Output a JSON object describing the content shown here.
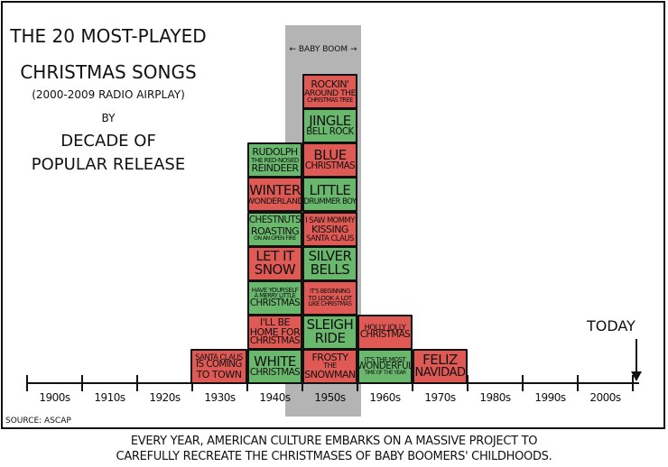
{
  "colors": {
    "red": "#e05a55",
    "green": "#69b86d",
    "band": "#b4b4b4",
    "ink": "#111111"
  },
  "title": {
    "lines": [
      "THE 20 MOST-PLAYED",
      "CHRISTMAS SONGS",
      "(2000-2009 RADIO AIRPLAY)",
      "BY",
      "DECADE OF",
      "POPULAR RELEASE"
    ]
  },
  "band_label": "← BABY BOOM →",
  "today_label": "TODAY",
  "source": "SOURCE: ASCAP",
  "caption": [
    "EVERY YEAR, AMERICAN CULTURE EMBARKS ON A MASSIVE PROJECT TO",
    "CAREFULLY RECREATE THE CHRISTMASES OF BABY BOOMERS' CHILDHOODS."
  ],
  "chart_data": {
    "type": "bar",
    "stacked_blocks": true,
    "categories": [
      "1900s",
      "1910s",
      "1920s",
      "1930s",
      "1940s",
      "1950s",
      "1960s",
      "1970s",
      "1980s",
      "1990s",
      "2000s"
    ],
    "values": [
      0,
      0,
      0,
      1,
      7,
      9,
      2,
      1,
      0,
      0,
      0
    ],
    "highlight": {
      "label": "BABY BOOM",
      "category": "1950s"
    },
    "songs": {
      "1930s": [
        {
          "lines": [
            "SANTA CLAUS",
            "IS COMING",
            "TO TOWN"
          ],
          "color": "red"
        }
      ],
      "1940s": [
        {
          "lines": [
            "WHITE",
            "CHRISTMAS"
          ],
          "color": "green"
        },
        {
          "lines": [
            "I'LL BE",
            "HOME FOR",
            "CHRISTMAS"
          ],
          "color": "red"
        },
        {
          "lines": [
            "HAVE YOURSELF",
            "A MERRY LITTLE",
            "CHRISTMAS"
          ],
          "color": "green"
        },
        {
          "lines": [
            "LET IT",
            "SNOW"
          ],
          "color": "red"
        },
        {
          "lines": [
            "CHESTNUTS",
            "ROASTING",
            "ON AN OPEN FIRE"
          ],
          "color": "green"
        },
        {
          "lines": [
            "WINTER",
            "WONDERLAND"
          ],
          "color": "red"
        },
        {
          "lines": [
            "RUDOLPH",
            "THE RED-NOSED",
            "REINDEER"
          ],
          "color": "green"
        }
      ],
      "1950s": [
        {
          "lines": [
            "FROSTY",
            "THE",
            "SNOWMAN"
          ],
          "color": "red"
        },
        {
          "lines": [
            "SLEIGH",
            "RIDE"
          ],
          "color": "green"
        },
        {
          "lines": [
            "IT'S BEGINNING",
            "TO LOOK A LOT",
            "LIKE CHRISTMAS"
          ],
          "color": "red"
        },
        {
          "lines": [
            "SILVER",
            "BELLS"
          ],
          "color": "green"
        },
        {
          "lines": [
            "I SAW MOMMY",
            "KISSING",
            "SANTA CLAUS"
          ],
          "color": "red"
        },
        {
          "lines": [
            "LITTLE",
            "DRUMMER BOY"
          ],
          "color": "green"
        },
        {
          "lines": [
            "BLUE",
            "CHRISTMAS"
          ],
          "color": "red"
        },
        {
          "lines": [
            "JINGLE",
            "BELL ROCK"
          ],
          "color": "green"
        },
        {
          "lines": [
            "ROCKIN'",
            "AROUND THE",
            "CHRISTMAS TREE"
          ],
          "color": "red"
        }
      ],
      "1960s": [
        {
          "lines": [
            "IT'S THE MOST",
            "WONDERFUL",
            "TIME OF THE YEAR"
          ],
          "color": "green"
        },
        {
          "lines": [
            "HOLLY JOLLY",
            "CHRISTMAS"
          ],
          "color": "red"
        }
      ],
      "1970s": [
        {
          "lines": [
            "FELIZ",
            "NAVIDAD"
          ],
          "color": "red"
        }
      ]
    }
  }
}
